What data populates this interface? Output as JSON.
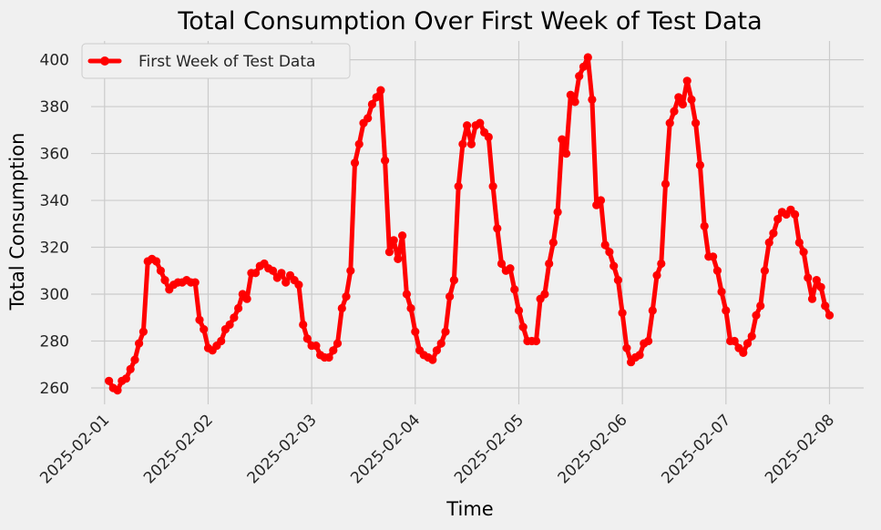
{
  "chart_data": {
    "type": "line",
    "title": "Total Consumption Over First Week of Test Data",
    "xlabel": "Time",
    "ylabel": "Total Consumption",
    "x_ticks": [
      "2025-02-01",
      "2025-02-02",
      "2025-02-03",
      "2025-02-04",
      "2025-02-05",
      "2025-02-06",
      "2025-02-07",
      "2025-02-08"
    ],
    "y_ticks": [
      260,
      280,
      300,
      320,
      340,
      360,
      380,
      400
    ],
    "xlim_days": [
      -0.13,
      7.33
    ],
    "ylim": [
      253,
      408
    ],
    "grid": true,
    "legend_position": "top-left",
    "series": [
      {
        "name": "First Week of Test Data",
        "color": "#ff0000",
        "marker": "circle",
        "x_days": [
          0.042,
          0.083,
          0.125,
          0.167,
          0.208,
          0.25,
          0.292,
          0.333,
          0.375,
          0.417,
          0.458,
          0.5,
          0.542,
          0.583,
          0.625,
          0.667,
          0.708,
          0.75,
          0.792,
          0.833,
          0.875,
          0.917,
          0.958,
          1.0,
          1.042,
          1.083,
          1.125,
          1.167,
          1.208,
          1.25,
          1.292,
          1.333,
          1.375,
          1.417,
          1.458,
          1.5,
          1.542,
          1.583,
          1.625,
          1.667,
          1.708,
          1.75,
          1.792,
          1.833,
          1.875,
          1.917,
          1.958,
          2.0,
          2.042,
          2.083,
          2.125,
          2.167,
          2.208,
          2.25,
          2.292,
          2.333,
          2.375,
          2.417,
          2.458,
          2.5,
          2.542,
          2.583,
          2.625,
          2.667,
          2.708,
          2.75,
          2.792,
          2.833,
          2.875,
          2.917,
          2.958,
          3.0,
          3.042,
          3.083,
          3.125,
          3.167,
          3.208,
          3.25,
          3.292,
          3.333,
          3.375,
          3.417,
          3.458,
          3.5,
          3.542,
          3.583,
          3.625,
          3.667,
          3.708,
          3.75,
          3.792,
          3.833,
          3.875,
          3.917,
          3.958,
          4.0,
          4.042,
          4.083,
          4.125,
          4.167,
          4.208,
          4.25,
          4.292,
          4.333,
          4.375,
          4.417,
          4.458,
          4.5,
          4.542,
          4.583,
          4.625,
          4.667,
          4.708,
          4.75,
          4.792,
          4.833,
          4.875,
          4.917,
          4.958,
          5.0,
          5.042,
          5.083,
          5.125,
          5.167,
          5.208,
          5.25,
          5.292,
          5.333,
          5.375,
          5.417,
          5.458,
          5.5,
          5.542,
          5.583,
          5.625,
          5.667,
          5.708,
          5.75,
          5.792,
          5.833,
          5.875,
          5.917,
          5.958,
          6.0,
          6.042,
          6.083,
          6.125,
          6.167,
          6.208,
          6.25,
          6.292,
          6.333,
          6.375,
          6.417,
          6.458,
          6.5,
          6.542,
          6.583,
          6.625,
          6.667,
          6.708,
          6.75,
          6.792,
          6.833,
          6.875,
          6.917,
          6.958,
          7.0
        ],
        "y": [
          263,
          260,
          259,
          263,
          264,
          268,
          272,
          279,
          284,
          314,
          315,
          314,
          310,
          306,
          302,
          304,
          305,
          305,
          306,
          305,
          305,
          289,
          285,
          277,
          276,
          278,
          280,
          285,
          287,
          290,
          294,
          300,
          298,
          309,
          309,
          312,
          313,
          311,
          310,
          307,
          309,
          305,
          308,
          306,
          304,
          287,
          281,
          278,
          278,
          274,
          273,
          273,
          276,
          279,
          294,
          299,
          310,
          356,
          364,
          373,
          375,
          381,
          384,
          387,
          357,
          318,
          323,
          315,
          325,
          300,
          294,
          284,
          276,
          274,
          273,
          272,
          276,
          279,
          284,
          299,
          306,
          346,
          364,
          372,
          364,
          372,
          373,
          369,
          367,
          346,
          328,
          313,
          310,
          311,
          302,
          293,
          286,
          280,
          280,
          280,
          298,
          300,
          313,
          322,
          335,
          366,
          360,
          385,
          382,
          393,
          397,
          401,
          383,
          338,
          340,
          321,
          318,
          312,
          306,
          292,
          277,
          271,
          273,
          274,
          279,
          280,
          293,
          308,
          313,
          347,
          373,
          378,
          384,
          381,
          391,
          383,
          373,
          355,
          329,
          316,
          316,
          310,
          301,
          293,
          280,
          280,
          277,
          275,
          279,
          282,
          291,
          295,
          310,
          322,
          326,
          332,
          335,
          334,
          336,
          334,
          322,
          318,
          307,
          298,
          306,
          303,
          295,
          291
        ]
      }
    ]
  }
}
